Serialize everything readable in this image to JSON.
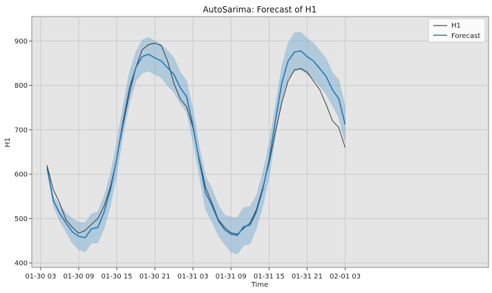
{
  "chart_data": {
    "type": "line",
    "title": "AutoSarima: Forecast of H1",
    "xlabel": "Time",
    "ylabel": "H1",
    "ylim": [
      390,
      955
    ],
    "x_start": "01-30 04",
    "x_step_hours": 1,
    "xlim_index": [
      -2.4,
      69.6
    ],
    "x_ticks": [
      {
        "index": -1,
        "label": "01-30 03"
      },
      {
        "index": 5,
        "label": "01-30 09"
      },
      {
        "index": 11,
        "label": "01-30 15"
      },
      {
        "index": 17,
        "label": "01-30 21"
      },
      {
        "index": 23,
        "label": "01-31 03"
      },
      {
        "index": 29,
        "label": "01-31 09"
      },
      {
        "index": 35,
        "label": "01-31 15"
      },
      {
        "index": 41,
        "label": "01-31 21"
      },
      {
        "index": 47,
        "label": "02-01 03"
      }
    ],
    "y_ticks": [
      400,
      500,
      600,
      700,
      800,
      900
    ],
    "grid": true,
    "legend_position": "top-right",
    "colors": {
      "background": "#e5e5e5",
      "actual": "#222222",
      "forecast": "#1f77b4",
      "band": "#6fa8d0"
    },
    "series": [
      {
        "name": "H1",
        "values": [
          620,
          565,
          535,
          497,
          480,
          467,
          473,
          487,
          500,
          528,
          572,
          635,
          712,
          783,
          840,
          880,
          892,
          895,
          890,
          855,
          805,
          770,
          752,
          705,
          635,
          570,
          535,
          498,
          480,
          468,
          465,
          478,
          490,
          520,
          570,
          625,
          695,
          760,
          810,
          835,
          838,
          830,
          810,
          790,
          757,
          720,
          705,
          660
        ]
      },
      {
        "name": "Forecast",
        "values": [
          615,
          540,
          512,
          490,
          470,
          460,
          457,
          477,
          480,
          515,
          565,
          635,
          720,
          795,
          840,
          865,
          870,
          862,
          855,
          840,
          825,
          795,
          775,
          710,
          630,
          558,
          530,
          495,
          475,
          465,
          462,
          482,
          485,
          515,
          565,
          632,
          720,
          805,
          855,
          875,
          878,
          865,
          855,
          838,
          820,
          790,
          770,
          712
        ]
      }
    ],
    "interval": {
      "lower": [
        610,
        530,
        495,
        470,
        445,
        430,
        425,
        445,
        445,
        478,
        530,
        600,
        690,
        760,
        810,
        828,
        832,
        825,
        818,
        800,
        785,
        760,
        740,
        675,
        598,
        520,
        493,
        462,
        442,
        425,
        420,
        440,
        443,
        478,
        527,
        595,
        685,
        768,
        815,
        832,
        835,
        825,
        815,
        798,
        780,
        755,
        728,
        672
      ],
      "upper": [
        620,
        550,
        530,
        512,
        500,
        492,
        490,
        510,
        515,
        550,
        600,
        670,
        755,
        830,
        875,
        902,
        908,
        900,
        892,
        878,
        862,
        830,
        810,
        745,
        662,
        595,
        567,
        530,
        508,
        503,
        502,
        525,
        527,
        552,
        602,
        668,
        752,
        842,
        895,
        918,
        920,
        905,
        895,
        878,
        860,
        828,
        812,
        752
      ]
    }
  }
}
